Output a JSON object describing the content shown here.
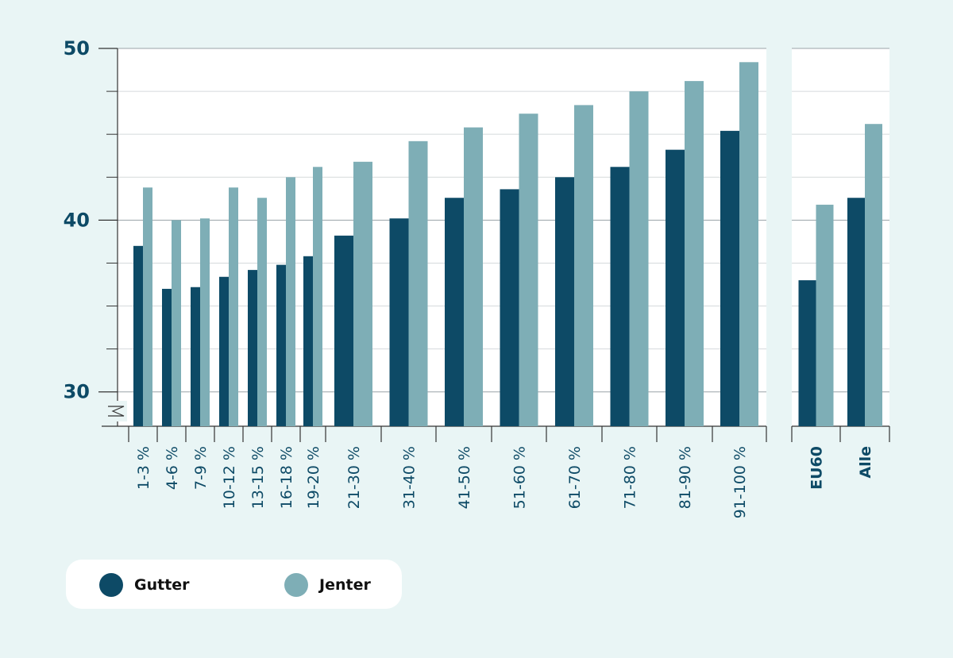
{
  "chart_data": {
    "type": "bar",
    "ylim": [
      28,
      50
    ],
    "yticks": [
      30,
      40,
      50
    ],
    "grid": true,
    "legend_position": "bottom-left",
    "colors": {
      "gutter": "#0d4a66",
      "jenter": "#7eaeb6",
      "axis": "#333333",
      "text": "#0d4a66"
    },
    "series": [
      {
        "name": "Gutter",
        "key": "gutter"
      },
      {
        "name": "Jenter",
        "key": "jenter"
      }
    ],
    "groups": [
      {
        "categories": [
          "1-3 %",
          "4-6 %",
          "7-9 %",
          "10-12 %",
          "13-15 %",
          "16-18 %",
          "19-20 %",
          "21-30 %",
          "31-40 %",
          "41-50 %",
          "51-60 %",
          "61-70 %",
          "71-80 %",
          "81-90 %",
          "91-100 %"
        ],
        "gutter": [
          38.5,
          36.0,
          36.1,
          36.7,
          37.1,
          37.4,
          37.9,
          39.1,
          40.1,
          41.3,
          41.8,
          42.5,
          43.1,
          44.1,
          45.2
        ],
        "jenter": [
          41.9,
          40.0,
          40.1,
          41.9,
          41.3,
          42.5,
          43.1,
          43.4,
          44.6,
          45.4,
          46.2,
          46.7,
          47.5,
          48.1,
          49.2
        ]
      },
      {
        "categories": [
          "EU60",
          "Alle"
        ],
        "bold": true,
        "gutter": [
          36.5,
          41.3
        ],
        "jenter": [
          40.9,
          45.6
        ]
      }
    ]
  }
}
